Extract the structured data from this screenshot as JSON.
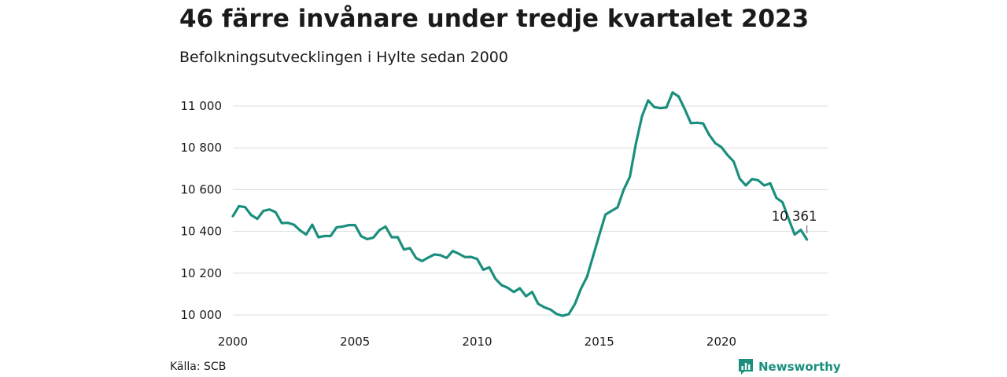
{
  "header": {
    "title": "46 färre invånare under tredje kvartalet 2023",
    "subtitle": "Befolkningsutvecklingen i Hylte sedan 2000"
  },
  "footer": {
    "source": "Källa: SCB",
    "brand": "Newsworthy",
    "brand_color": "#1b8f7e",
    "brand_icon": "bar-chart-speech-bubble-icon"
  },
  "chart_data": {
    "type": "line",
    "color": "#1b8f7e",
    "x_ticks": [
      2000,
      2005,
      2010,
      2015,
      2020
    ],
    "y_ticks": [
      10000,
      10200,
      10400,
      10600,
      10800,
      11000
    ],
    "y_tick_labels": [
      "10 000",
      "10 200",
      "10 400",
      "10 600",
      "10 800",
      "11 000"
    ],
    "x_tick_labels": [
      "2000",
      "2005",
      "2010",
      "2015",
      "2020"
    ],
    "xlim": [
      2000,
      2024.5
    ],
    "ylim": [
      9990,
      11060
    ],
    "grid": "horizontal",
    "last_value_label": "10 361",
    "series": [
      {
        "values": [
          [
            2000.0,
            10473
          ],
          [
            2000.25,
            10521
          ],
          [
            2000.5,
            10516
          ],
          [
            2000.75,
            10478
          ],
          [
            2001.0,
            10460
          ],
          [
            2001.25,
            10498
          ],
          [
            2001.5,
            10505
          ],
          [
            2001.75,
            10492
          ],
          [
            2002.0,
            10440
          ],
          [
            2002.25,
            10441
          ],
          [
            2002.5,
            10432
          ],
          [
            2002.75,
            10405
          ],
          [
            2003.0,
            10385
          ],
          [
            2003.25,
            10432
          ],
          [
            2003.5,
            10372
          ],
          [
            2003.75,
            10378
          ],
          [
            2004.0,
            10378
          ],
          [
            2004.25,
            10420
          ],
          [
            2004.5,
            10423
          ],
          [
            2004.75,
            10430
          ],
          [
            2005.0,
            10430
          ],
          [
            2005.25,
            10377
          ],
          [
            2005.5,
            10363
          ],
          [
            2005.75,
            10370
          ],
          [
            2006.0,
            10406
          ],
          [
            2006.25,
            10423
          ],
          [
            2006.5,
            10372
          ],
          [
            2006.75,
            10372
          ],
          [
            2007.0,
            10313
          ],
          [
            2007.25,
            10320
          ],
          [
            2007.5,
            10272
          ],
          [
            2007.75,
            10258
          ],
          [
            2008.0,
            10275
          ],
          [
            2008.25,
            10290
          ],
          [
            2008.5,
            10286
          ],
          [
            2008.75,
            10273
          ],
          [
            2009.0,
            10306
          ],
          [
            2009.25,
            10293
          ],
          [
            2009.5,
            10277
          ],
          [
            2009.75,
            10278
          ],
          [
            2010.0,
            10268
          ],
          [
            2010.25,
            10216
          ],
          [
            2010.5,
            10228
          ],
          [
            2010.75,
            10173
          ],
          [
            2011.0,
            10143
          ],
          [
            2011.25,
            10130
          ],
          [
            2011.5,
            10110
          ],
          [
            2011.75,
            10128
          ],
          [
            2012.0,
            10090
          ],
          [
            2012.25,
            10110
          ],
          [
            2012.5,
            10053
          ],
          [
            2012.75,
            10037
          ],
          [
            2013.0,
            10026
          ],
          [
            2013.25,
            10005
          ],
          [
            2013.5,
            9996
          ],
          [
            2013.75,
            10004
          ],
          [
            2014.0,
            10052
          ],
          [
            2014.25,
            10126
          ],
          [
            2014.5,
            10183
          ],
          [
            2014.75,
            10283
          ],
          [
            2015.0,
            10383
          ],
          [
            2015.25,
            10480
          ],
          [
            2015.5,
            10498
          ],
          [
            2015.75,
            10515
          ],
          [
            2016.0,
            10600
          ],
          [
            2016.25,
            10661
          ],
          [
            2016.5,
            10820
          ],
          [
            2016.75,
            10952
          ],
          [
            2017.0,
            11027
          ],
          [
            2017.25,
            10995
          ],
          [
            2017.5,
            10990
          ],
          [
            2017.75,
            10993
          ],
          [
            2018.0,
            11065
          ],
          [
            2018.25,
            11045
          ],
          [
            2018.5,
            10985
          ],
          [
            2018.75,
            10918
          ],
          [
            2019.0,
            10920
          ],
          [
            2019.25,
            10917
          ],
          [
            2019.5,
            10862
          ],
          [
            2019.75,
            10822
          ],
          [
            2020.0,
            10803
          ],
          [
            2020.25,
            10765
          ],
          [
            2020.5,
            10735
          ],
          [
            2020.75,
            10652
          ],
          [
            2021.0,
            10620
          ],
          [
            2021.25,
            10650
          ],
          [
            2021.5,
            10645
          ],
          [
            2021.75,
            10620
          ],
          [
            2022.0,
            10630
          ],
          [
            2022.25,
            10560
          ],
          [
            2022.5,
            10540
          ],
          [
            2022.75,
            10460
          ],
          [
            2023.0,
            10385
          ],
          [
            2023.25,
            10407
          ],
          [
            2023.5,
            10361
          ]
        ]
      }
    ]
  }
}
